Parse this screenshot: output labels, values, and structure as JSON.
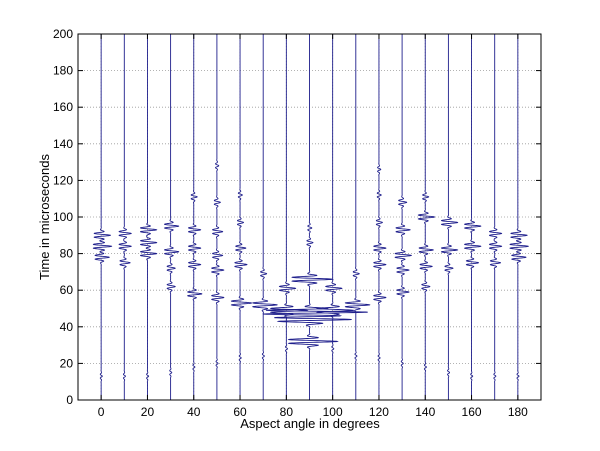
{
  "chart_data": {
    "type": "line",
    "title": "",
    "xlabel": "Aspect angle in degrees",
    "ylabel": "Time in microseconds",
    "xlim": [
      -10,
      190
    ],
    "ylim": [
      0,
      200
    ],
    "xticks": [
      0,
      20,
      40,
      60,
      80,
      100,
      120,
      140,
      160,
      180
    ],
    "yticks": [
      0,
      20,
      40,
      60,
      80,
      100,
      120,
      140,
      160,
      180,
      200
    ],
    "grid": true,
    "trace_color": "#1f1f8c",
    "traces": [
      {
        "angle": 0,
        "events": [
          {
            "t": 13,
            "a": 0.5
          },
          {
            "t": 78,
            "a": 3.5
          },
          {
            "t": 84,
            "a": 4.5
          },
          {
            "t": 90,
            "a": 4
          }
        ]
      },
      {
        "angle": 10,
        "events": [
          {
            "t": 13,
            "a": 0.5
          },
          {
            "t": 75,
            "a": 2.5
          },
          {
            "t": 84,
            "a": 3
          },
          {
            "t": 91,
            "a": 3
          }
        ]
      },
      {
        "angle": 20,
        "events": [
          {
            "t": 13,
            "a": 0.5
          },
          {
            "t": 80,
            "a": 4
          },
          {
            "t": 86,
            "a": 4
          },
          {
            "t": 93,
            "a": 4
          }
        ]
      },
      {
        "angle": 30,
        "events": [
          {
            "t": 15,
            "a": 0.5
          },
          {
            "t": 62,
            "a": 2
          },
          {
            "t": 72,
            "a": 2
          },
          {
            "t": 81,
            "a": 3.5
          },
          {
            "t": 95,
            "a": 3.5
          }
        ]
      },
      {
        "angle": 40,
        "events": [
          {
            "t": 18,
            "a": 0.5
          },
          {
            "t": 58,
            "a": 3.5
          },
          {
            "t": 74,
            "a": 3
          },
          {
            "t": 83,
            "a": 3
          },
          {
            "t": 93,
            "a": 3
          },
          {
            "t": 111,
            "a": 1.5
          }
        ]
      },
      {
        "angle": 50,
        "events": [
          {
            "t": 20,
            "a": 0.5
          },
          {
            "t": 56,
            "a": 3
          },
          {
            "t": 71,
            "a": 3
          },
          {
            "t": 79,
            "a": 2.5
          },
          {
            "t": 92,
            "a": 2.5
          },
          {
            "t": 108,
            "a": 1.5
          },
          {
            "t": 128,
            "a": 0.8
          }
        ]
      },
      {
        "angle": 60,
        "events": [
          {
            "t": 23,
            "a": 0.5
          },
          {
            "t": 53,
            "a": 5
          },
          {
            "t": 74,
            "a": 3
          },
          {
            "t": 83,
            "a": 2.5
          },
          {
            "t": 97,
            "a": 1.5
          },
          {
            "t": 112,
            "a": 1
          }
        ]
      },
      {
        "angle": 70,
        "events": [
          {
            "t": 24,
            "a": 0.5
          },
          {
            "t": 52,
            "a": 6
          },
          {
            "t": 69,
            "a": 1.5
          }
        ]
      },
      {
        "angle": 80,
        "events": [
          {
            "t": 28,
            "a": 0.5
          },
          {
            "t": 49,
            "a": 9
          },
          {
            "t": 61,
            "a": 4
          }
        ]
      },
      {
        "angle": 90,
        "events": [
          {
            "t": 32,
            "a": 12
          },
          {
            "t": 44,
            "a": 18
          },
          {
            "t": 48,
            "a": 25
          },
          {
            "t": 66,
            "a": 10
          },
          {
            "t": 86,
            "a": 1.5
          },
          {
            "t": 94,
            "a": 1
          }
        ]
      },
      {
        "angle": 100,
        "events": [
          {
            "t": 28,
            "a": 0.5
          },
          {
            "t": 49,
            "a": 9
          },
          {
            "t": 61,
            "a": 4
          }
        ]
      },
      {
        "angle": 110,
        "events": [
          {
            "t": 24,
            "a": 0.5
          },
          {
            "t": 52,
            "a": 6
          },
          {
            "t": 69,
            "a": 1.5
          }
        ]
      },
      {
        "angle": 120,
        "events": [
          {
            "t": 23,
            "a": 0.5
          },
          {
            "t": 56,
            "a": 3
          },
          {
            "t": 74,
            "a": 3
          },
          {
            "t": 83,
            "a": 3
          },
          {
            "t": 97,
            "a": 1.5
          },
          {
            "t": 112,
            "a": 1
          },
          {
            "t": 126,
            "a": 0.8
          }
        ]
      },
      {
        "angle": 130,
        "events": [
          {
            "t": 20,
            "a": 0.5
          },
          {
            "t": 59,
            "a": 3
          },
          {
            "t": 71,
            "a": 3
          },
          {
            "t": 79,
            "a": 4
          },
          {
            "t": 93,
            "a": 3.5
          },
          {
            "t": 108,
            "a": 2
          }
        ]
      },
      {
        "angle": 140,
        "events": [
          {
            "t": 18,
            "a": 0.5
          },
          {
            "t": 62,
            "a": 2
          },
          {
            "t": 73,
            "a": 3
          },
          {
            "t": 82,
            "a": 3.5
          },
          {
            "t": 100,
            "a": 4
          },
          {
            "t": 111,
            "a": 1.5
          }
        ]
      },
      {
        "angle": 150,
        "events": [
          {
            "t": 15,
            "a": 0.5
          },
          {
            "t": 72,
            "a": 2
          },
          {
            "t": 82,
            "a": 4
          },
          {
            "t": 97,
            "a": 4
          }
        ]
      },
      {
        "angle": 160,
        "events": [
          {
            "t": 13,
            "a": 0.5
          },
          {
            "t": 75,
            "a": 3
          },
          {
            "t": 84,
            "a": 4
          },
          {
            "t": 95,
            "a": 4
          }
        ]
      },
      {
        "angle": 170,
        "events": [
          {
            "t": 13,
            "a": 0.5
          },
          {
            "t": 75,
            "a": 2.5
          },
          {
            "t": 84,
            "a": 3
          },
          {
            "t": 91,
            "a": 3
          }
        ]
      },
      {
        "angle": 180,
        "events": [
          {
            "t": 13,
            "a": 0.5
          },
          {
            "t": 78,
            "a": 3.5
          },
          {
            "t": 84,
            "a": 4.5
          },
          {
            "t": 90,
            "a": 4
          }
        ]
      }
    ]
  }
}
